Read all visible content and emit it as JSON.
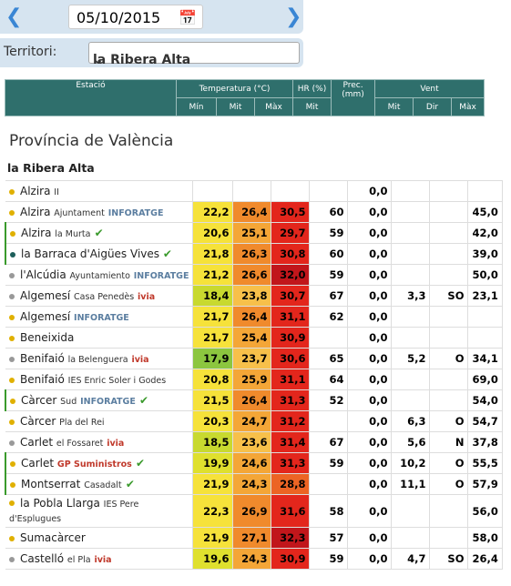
{
  "date": "05/10/2015",
  "territory": {
    "label": "Territori:",
    "value": "la Ribera Alta"
  },
  "header": {
    "station": "Estació",
    "groups": [
      "Temperatura (°C)",
      "HR (%)",
      "Prec. (mm)",
      "Vent"
    ],
    "sub": [
      "Mín",
      "Mit",
      "Màx",
      "Mit",
      "Mit",
      "Dir",
      "Màx"
    ]
  },
  "province": "Província de València",
  "region": "la Ribera Alta",
  "rows": [
    {
      "name": "Alzira",
      "place": "II",
      "dot": "#e0b000",
      "cells": [
        null,
        null,
        null,
        null,
        "0,0",
        null,
        null,
        null
      ]
    },
    {
      "name": "Alzira",
      "place": "Ajuntament",
      "source": "INFORATGE",
      "dot": "#e0b000",
      "cells": [
        "22,2",
        "26,4",
        "30,5",
        "60",
        "0,0",
        null,
        null,
        "45,0"
      ]
    },
    {
      "name": "Alzira",
      "place": "la Murta",
      "check": true,
      "dot": "#e0b000",
      "cells": [
        "20,6",
        "25,1",
        "29,7",
        "59",
        "0,0",
        null,
        null,
        "42,0"
      ]
    },
    {
      "name": "la Barraca d'Aigües Vives",
      "check": true,
      "dot": "#1d5e5a",
      "cells": [
        "21,8",
        "26,3",
        "30,8",
        "60",
        "0,0",
        null,
        null,
        "39,0"
      ]
    },
    {
      "name": "l'Alcúdia",
      "place": "Ayuntamiento",
      "source": "INFORATGE",
      "dot": "#999999",
      "cells": [
        "21,2",
        "26,6",
        "32,0",
        "59",
        "0,0",
        null,
        null,
        "50,0"
      ]
    },
    {
      "name": "Algemesí",
      "place": "Casa Penedès",
      "source": "ivia",
      "dot": "#999999",
      "cells": [
        "18,4",
        "23,8",
        "30,7",
        "67",
        "0,0",
        "3,3",
        "SO",
        "23,1"
      ]
    },
    {
      "name": "Algemesí",
      "source": "INFORATGE",
      "dot": "#e0b000",
      "cells": [
        "21,7",
        "26,4",
        "31,1",
        "62",
        "0,0",
        null,
        null,
        null
      ]
    },
    {
      "name": "Beneixida",
      "dot": "#e0b000",
      "cells": [
        "21,7",
        "25,4",
        "30,9",
        null,
        "0,0",
        null,
        null,
        null
      ]
    },
    {
      "name": "Benifaió",
      "place": "la Belenguera",
      "source": "ivia",
      "dot": "#999999",
      "cells": [
        "17,9",
        "23,7",
        "30,6",
        "65",
        "0,0",
        "5,2",
        "O",
        "34,1"
      ]
    },
    {
      "name": "Benifaió",
      "place": "IES Enric Soler i Godes",
      "dot": "#e0b000",
      "cells": [
        "20,8",
        "25,9",
        "31,1",
        "64",
        "0,0",
        null,
        null,
        "69,0"
      ]
    },
    {
      "name": "Càrcer",
      "place": "Sud",
      "source": "INFORATGE",
      "check": true,
      "dot": "#e0b000",
      "cells": [
        "21,5",
        "26,4",
        "31,3",
        "52",
        "0,0",
        null,
        null,
        "54,0"
      ]
    },
    {
      "name": "Càrcer",
      "place": "Pla del Rei",
      "dot": "#e0b000",
      "cells": [
        "20,3",
        "24,7",
        "31,2",
        null,
        "0,0",
        "6,3",
        "O",
        "54,7"
      ]
    },
    {
      "name": "Carlet",
      "place": "el Fossaret",
      "source": "ivia",
      "dot": "#999999",
      "cells": [
        "18,5",
        "23,6",
        "31,4",
        "67",
        "0,0",
        "5,6",
        "N",
        "37,8"
      ]
    },
    {
      "name": "Carlet",
      "source": "GP Suministros",
      "check": true,
      "dot": "#e0b000",
      "cells": [
        "19,9",
        "24,6",
        "31,3",
        "59",
        "0,0",
        "10,2",
        "O",
        "55,5"
      ]
    },
    {
      "name": "Montserrat",
      "place": "Casadalt",
      "check": true,
      "dot": "#e0b000",
      "cells": [
        "21,9",
        "24,3",
        "28,8",
        null,
        "0,0",
        "11,1",
        "O",
        "57,9"
      ]
    },
    {
      "name": "la Pobla Llarga",
      "place": "IES Pere d'Esplugues",
      "dot": "#e0b000",
      "cells": [
        "22,3",
        "26,9",
        "31,6",
        "58",
        "0,0",
        null,
        null,
        "56,0"
      ]
    },
    {
      "name": "Sumacàrcer",
      "dot": "#e0b000",
      "cells": [
        "21,9",
        "27,1",
        "32,3",
        "57",
        "0,0",
        null,
        null,
        "58,0"
      ]
    },
    {
      "name": "Castelló",
      "place": "el Pla",
      "source": "ivia",
      "dot": "#999999",
      "cells": [
        "19,6",
        "24,3",
        "30,9",
        "59",
        "0,0",
        "4,7",
        "SO",
        "26,4"
      ]
    }
  ]
}
